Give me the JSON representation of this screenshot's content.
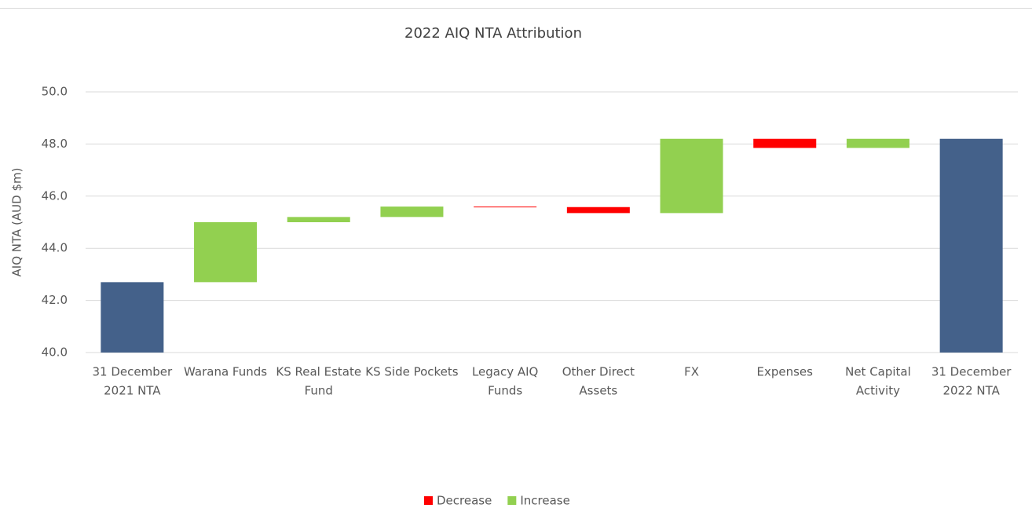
{
  "chart_data": {
    "type": "waterfall",
    "title": "2022 AIQ NTA Attribution",
    "y_label": "AIQ NTA (AUD $m)",
    "categories": [
      [
        "31 December",
        "2021 NTA"
      ],
      [
        "Warana Funds"
      ],
      [
        "KS Real Estate",
        "Fund"
      ],
      [
        "KS Side Pockets"
      ],
      [
        "Legacy AIQ",
        "Funds"
      ],
      [
        "Other Direct",
        "Assets"
      ],
      [
        "FX"
      ],
      [
        "Expenses"
      ],
      [
        "Net Capital",
        "Activity"
      ],
      [
        "31 December",
        "2022 NTA"
      ]
    ],
    "values": [
      42.7,
      2.3,
      0.2,
      0.4,
      -0.02,
      -0.23,
      2.85,
      -0.35,
      0.35,
      48.2
    ],
    "measures": [
      "total",
      "relative",
      "relative",
      "relative",
      "relative",
      "relative",
      "relative",
      "relative",
      "relative",
      "total"
    ],
    "total_color": "#44618a",
    "legend": [
      {
        "name": "Decrease",
        "color": "#ff0000"
      },
      {
        "name": "Increase",
        "color": "#92d050"
      }
    ],
    "ylim": [
      40,
      50
    ],
    "yticks": [
      {
        "value": 40,
        "label": "40.0"
      },
      {
        "value": 42,
        "label": "42.0"
      },
      {
        "value": 44,
        "label": "44.0"
      },
      {
        "value": 46,
        "label": "46.0"
      },
      {
        "value": 48,
        "label": "48.0"
      },
      {
        "value": 50,
        "label": "50.0"
      }
    ],
    "grid": true
  }
}
